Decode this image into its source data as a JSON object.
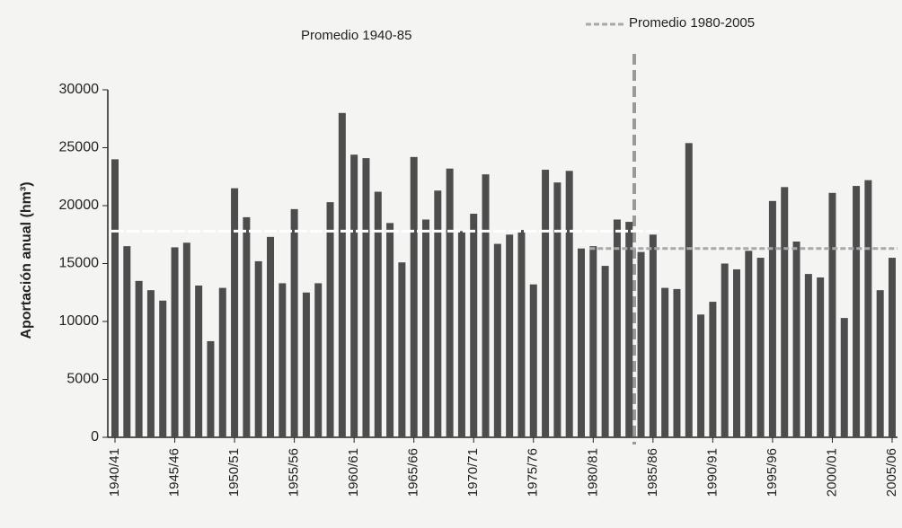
{
  "chart_data": {
    "type": "bar",
    "y_label": "Aportación anual (hm³)",
    "categories": [
      "1940/41",
      null,
      null,
      null,
      null,
      "1945/46",
      null,
      null,
      null,
      null,
      "1950/51",
      null,
      null,
      null,
      null,
      "1955/56",
      null,
      null,
      null,
      null,
      "1960/61",
      null,
      null,
      null,
      null,
      "1965/66",
      null,
      null,
      null,
      null,
      "1970/71",
      null,
      null,
      null,
      null,
      "1975/76",
      null,
      null,
      null,
      null,
      "1980/81",
      null,
      null,
      null,
      null,
      "1985/86",
      null,
      null,
      null,
      null,
      "1990/91",
      null,
      null,
      null,
      null,
      "1995/96",
      null,
      null,
      null,
      null,
      "2000/01",
      null,
      null,
      null,
      null,
      "2005/06"
    ],
    "values": [
      24000,
      16500,
      13500,
      12700,
      11800,
      16400,
      16800,
      13100,
      8300,
      12900,
      21500,
      19000,
      15200,
      17300,
      13300,
      19700,
      12500,
      13300,
      20300,
      28000,
      24400,
      24100,
      21200,
      18500,
      15100,
      24200,
      18800,
      21300,
      23200,
      17800,
      19300,
      22700,
      16700,
      17500,
      17900,
      13200,
      23100,
      22000,
      23000,
      16300,
      16500,
      14800,
      18800,
      18600,
      16000,
      17500,
      12900,
      12800,
      25400,
      10600,
      11700,
      15000,
      14500,
      16100,
      15500,
      20400,
      21600,
      16900,
      14100,
      13800,
      21100,
      10300,
      21700,
      22200,
      12700,
      15500
    ],
    "color": "#4d4d4d",
    "averages": [
      {
        "name": "Promedio 1940-85",
        "value": 17800,
        "color": "#ffffff"
      },
      {
        "name": "Promedio 1980-2005",
        "value": 16300,
        "color": "#a9a9a9"
      }
    ],
    "ylim": [
      0,
      30000
    ],
    "yticks": [
      0,
      5000,
      10000,
      15000,
      20000,
      25000,
      30000
    ]
  }
}
